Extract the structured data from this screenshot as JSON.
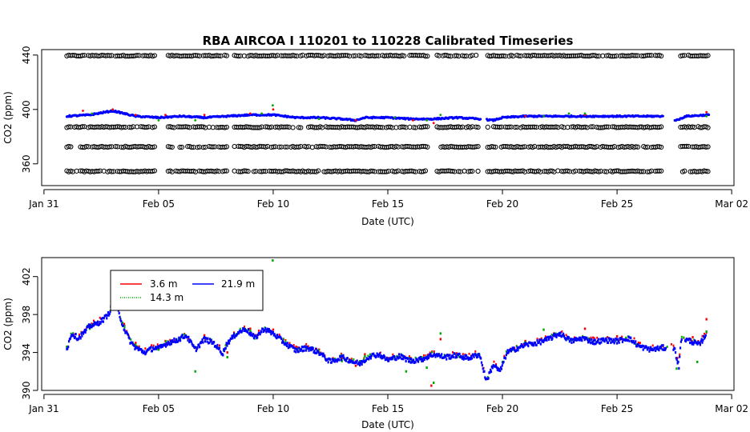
{
  "figure": {
    "title": "RBA   AIRCOA  I    110201  to  110228   Calibrated Timeseries"
  },
  "chart_data": [
    {
      "type": "scatter",
      "title": "RBA   AIRCOA  I    110201  to  110228   Calibrated Timeseries",
      "xlabel": "Date (UTC)",
      "ylabel": "CO2 (ppm)",
      "x_ticks": [
        "Jan 31",
        "Feb 05",
        "Feb 10",
        "Feb 15",
        "Feb 20",
        "Feb 25",
        "Mar 02"
      ],
      "x_tick_days": [
        0,
        5,
        10,
        15,
        20,
        25,
        30
      ],
      "x_start_date": "2011-01-31",
      "xlim_days": [
        -0.1,
        30.1
      ],
      "y_ticks": [
        360,
        400,
        440
      ],
      "ylim": [
        344,
        444
      ],
      "grid": false,
      "calibration_levels": [
        {
          "name": "cal-440",
          "value": 439.5,
          "color": "#000000"
        },
        {
          "name": "cal-387",
          "value": 387,
          "color": "#000000"
        },
        {
          "name": "cal-373",
          "value": 372.5,
          "color": "#000000"
        },
        {
          "name": "cal-355",
          "value": 354.5,
          "color": "#000000"
        }
      ],
      "cal_gaps_days": [
        [
          4.9,
          5.4
        ],
        [
          8.0,
          8.3
        ],
        [
          16.8,
          17.1
        ],
        [
          19.0,
          19.3
        ],
        [
          27.0,
          27.7
        ]
      ],
      "cal_data_range_days": [
        1.0,
        29.0
      ],
      "series": [
        {
          "name": "21.9 m",
          "color": "#0000ff",
          "x_days": [
            1.0,
            2.0,
            3.0,
            3.5,
            4.0,
            5.0,
            6.0,
            7.0,
            8.0,
            9.0,
            10.0,
            11.0,
            12.0,
            13.0,
            13.6,
            14.0,
            15.0,
            16.0,
            17.0,
            18.0,
            19.0,
            19.6,
            20.0,
            21.0,
            22.0,
            23.0,
            24.0,
            25.0,
            26.0,
            27.0,
            27.6,
            28.0,
            29.0
          ],
          "values": [
            395,
            396,
            399,
            397,
            395,
            394,
            395,
            394,
            395,
            396,
            396,
            394,
            394,
            393,
            392,
            394,
            394,
            393,
            393,
            394,
            393,
            392,
            394,
            395,
            395,
            395,
            395,
            395,
            395,
            395,
            392,
            395,
            396
          ]
        },
        {
          "name": "3.6 m",
          "color": "#ff0000",
          "x_days": [
            1.7,
            3.0,
            4.0,
            5.3,
            7.0,
            9.0,
            10.0,
            13.6,
            16.1,
            17.0,
            21.0,
            23.6,
            28.9
          ],
          "values": [
            399,
            400,
            396,
            396,
            396,
            397,
            400,
            392,
            392,
            390,
            395,
            396,
            398
          ]
        },
        {
          "name": "14.3 m",
          "color": "#00aa00",
          "x_days": [
            2.1,
            5.0,
            6.6,
            9.5,
            9.98,
            12.0,
            15.3,
            16.7,
            17.3,
            21.8,
            22.9,
            23.6,
            28.9
          ],
          "values": [
            397,
            392,
            392,
            397,
            403,
            393,
            394,
            392,
            396,
            395,
            397,
            397,
            395
          ]
        }
      ]
    },
    {
      "type": "line",
      "xlabel": "Date (UTC)",
      "ylabel": "CO2 (ppm)",
      "x_ticks": [
        "Jan 31",
        "Feb 05",
        "Feb 10",
        "Feb 15",
        "Feb 20",
        "Feb 25",
        "Mar 02"
      ],
      "x_tick_days": [
        0,
        5,
        10,
        15,
        20,
        25,
        30
      ],
      "x_start_date": "2011-01-31",
      "xlim_days": [
        -0.1,
        30.1
      ],
      "y_ticks": [
        390,
        394,
        398,
        402
      ],
      "ylim": [
        390,
        404
      ],
      "grid": false,
      "legend_position": "top-left",
      "legend": [
        "3.6 m",
        "21.9 m",
        "14.3 m"
      ],
      "series": [
        {
          "name": "21.9 m",
          "color": "#0000ff",
          "x_days": [
            1.0,
            1.2,
            1.5,
            1.8,
            2.0,
            2.3,
            2.6,
            2.8,
            3.0,
            3.2,
            3.5,
            3.8,
            4.0,
            4.4,
            4.8,
            5.0,
            5.4,
            5.8,
            6.2,
            6.6,
            7.0,
            7.4,
            7.8,
            8.0,
            8.4,
            8.8,
            9.2,
            9.6,
            10.0,
            10.5,
            11.0,
            11.5,
            12.0,
            12.5,
            13.0,
            13.5,
            13.8,
            14.2,
            14.6,
            15.0,
            15.5,
            16.0,
            16.5,
            17.0,
            17.5,
            18.0,
            18.5,
            19.0,
            19.3,
            19.6,
            19.9,
            20.2,
            20.6,
            21.0,
            21.5,
            22.0,
            22.5,
            23.0,
            23.5,
            24.0,
            24.5,
            25.0,
            25.5,
            26.0,
            26.5,
            27.0,
            27.5,
            27.7,
            27.8,
            28.2,
            28.6,
            28.9
          ],
          "values": [
            394.3,
            396.0,
            395.5,
            396.2,
            396.8,
            397.0,
            397.5,
            398.0,
            399.0,
            398.6,
            396.5,
            395.0,
            394.5,
            394.0,
            394.5,
            394.4,
            395.0,
            395.3,
            395.8,
            394.3,
            395.4,
            395.0,
            393.9,
            395.0,
            396.0,
            396.5,
            395.5,
            396.5,
            396.0,
            395.0,
            394.2,
            394.5,
            394.0,
            393.0,
            393.5,
            393.0,
            392.8,
            393.6,
            393.8,
            393.2,
            393.6,
            393.1,
            393.3,
            393.8,
            393.5,
            393.7,
            393.4,
            393.8,
            391.0,
            392.7,
            392.0,
            394.0,
            394.4,
            394.8,
            395.0,
            395.4,
            396.0,
            395.2,
            395.5,
            395.1,
            395.3,
            395.2,
            395.5,
            394.6,
            394.3,
            394.5,
            394.4,
            392.5,
            395.5,
            395.2,
            394.8,
            396.0
          ]
        },
        {
          "name": "3.6 m",
          "color": "#ff0000",
          "x_days": [
            1.0,
            2.0,
            3.0,
            3.5,
            4.0,
            5.0,
            5.3,
            7.0,
            8.0,
            9.0,
            10.0,
            11.0,
            12.0,
            13.0,
            13.6,
            14.0,
            15.0,
            16.0,
            16.9,
            17.3,
            18.0,
            21.0,
            23.6,
            24.0,
            25.0,
            26.0,
            28.3,
            28.9
          ],
          "values": [
            394.6,
            396.8,
            399.8,
            397.0,
            395.0,
            394.6,
            395.2,
            395.8,
            394.0,
            396.5,
            396.4,
            394.6,
            394.3,
            393.4,
            392.6,
            393.8,
            393.4,
            393.4,
            390.5,
            395.4,
            393.9,
            395.2,
            396.5,
            395.5,
            395.7,
            395.0,
            395.6,
            397.5
          ]
        },
        {
          "name": "14.3 m",
          "color": "#00aa00",
          "x_days": [
            1.0,
            2.0,
            3.0,
            3.5,
            4.0,
            5.0,
            6.6,
            7.0,
            8.0,
            9.0,
            9.98,
            11.0,
            12.0,
            13.0,
            14.0,
            15.0,
            15.8,
            16.7,
            17.0,
            17.3,
            18.0,
            20.0,
            21.0,
            21.8,
            23.0,
            25.0,
            27.6,
            28.5,
            28.9
          ],
          "values": [
            394.5,
            396.5,
            399.5,
            396.8,
            394.8,
            394.3,
            392.0,
            395.5,
            393.5,
            396.3,
            403.7,
            394.4,
            394.0,
            393.1,
            393.6,
            393.2,
            392.0,
            392.4,
            390.8,
            396.0,
            393.7,
            393.0,
            395.0,
            396.4,
            395.3,
            395.3,
            392.3,
            393.0,
            396.2
          ]
        }
      ]
    }
  ]
}
